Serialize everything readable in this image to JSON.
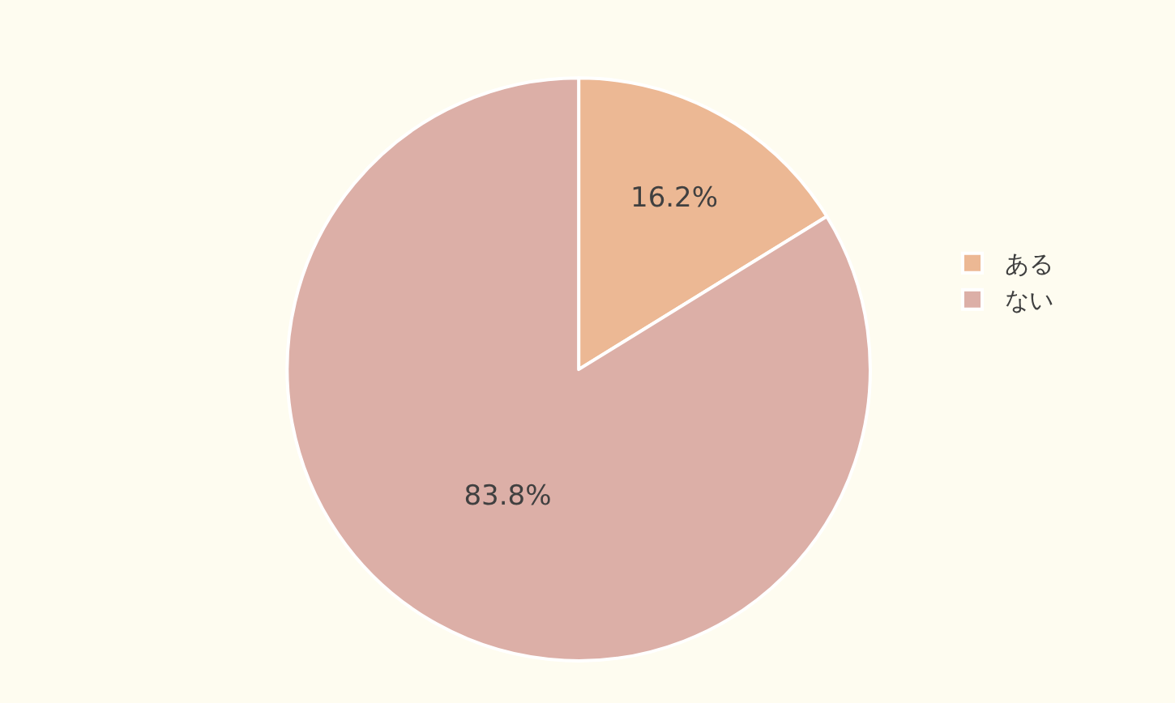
{
  "chart_data": {
    "type": "pie",
    "categories": [
      "ある",
      "ない"
    ],
    "values": [
      16.2,
      83.8
    ],
    "colors": [
      "#ecb894",
      "#dcafa7"
    ],
    "value_labels": [
      "16.2%",
      "83.8%"
    ],
    "legend": "right"
  }
}
